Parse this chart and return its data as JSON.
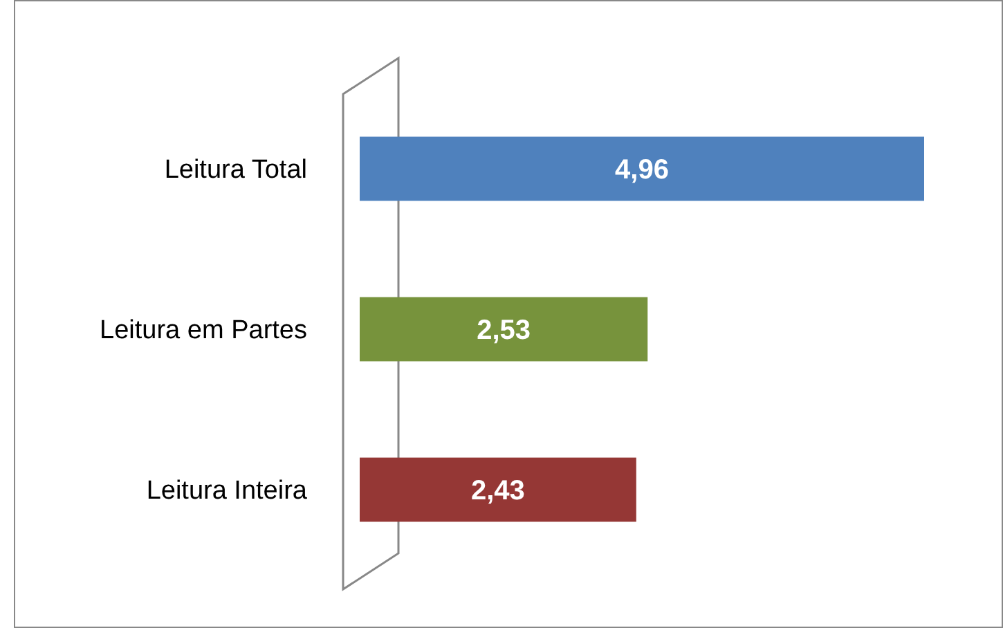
{
  "chart_data": {
    "type": "bar",
    "orientation": "horizontal",
    "categories": [
      "Leitura Total",
      "Leitura em Partes",
      "Leitura Inteira"
    ],
    "values": [
      4.96,
      2.53,
      2.43
    ],
    "colors": [
      "#4f81bd",
      "#77933c",
      "#953735"
    ],
    "value_labels": [
      "4,96",
      "2,53",
      "2,43"
    ]
  }
}
